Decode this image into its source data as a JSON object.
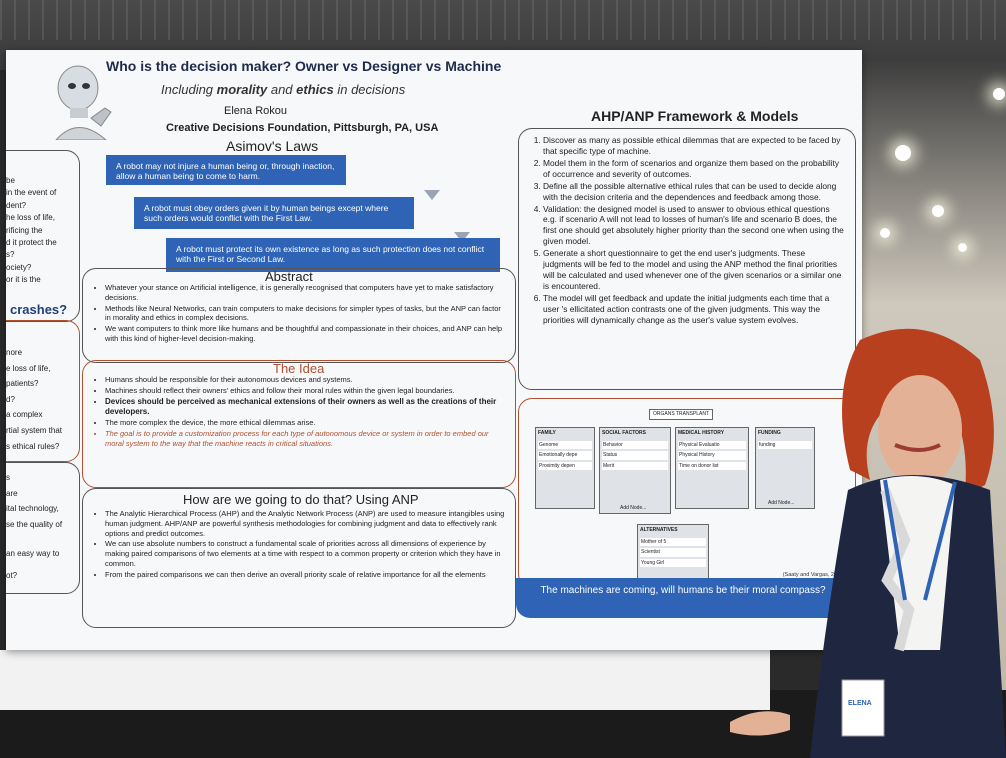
{
  "poster": {
    "title": "Who is the decision maker? Owner vs Designer vs Machine",
    "subtitle_prefix": "Including ",
    "subtitle_morality": "morality",
    "subtitle_and": " and ",
    "subtitle_ethics": "ethics",
    "subtitle_suffix": " in decisions",
    "author": "Elena Rokou",
    "org": "Creative Decisions Foundation, Pittsburgh, PA, USA",
    "asimov_title": "Asimov's Laws",
    "laws": [
      "A robot may not injure a human being or, through inaction, allow a human being to come to harm.",
      "A robot must obey orders given it by human beings except where such orders would conflict with the First Law.",
      "A robot must protect its own existence as long as such protection does not conflict with the First or Second Law."
    ],
    "abstract_title": "Abstract",
    "abstract": [
      "Whatever your stance on Artificial intelligence, it is generally recognised that computers have yet to make satisfactory decisions.",
      "Methods like Neural Networks, can train computers to make decisions for simpler types of tasks, but the ANP can factor in morality and ethics in complex decisions.",
      "We want computers to think more like humans and be thoughtful and compassionate in their choices, and ANP can help with this kind of higher-level decision-making."
    ],
    "idea_title": "The Idea",
    "idea": [
      "Humans should be responsible for their autonomous devices and systems.",
      "Machines should reflect their owners' ethics and follow their moral rules within the given legal boundaries.",
      "Devices should be perceived as mechanical extensions of their owners as well as the creations of their developers.",
      "The more complex the device, the more ethical dilemmas arise.",
      "The goal is to provide a customization process for each type of autonomous device or system in order to embed our moral system to the way that the machine reacts in critical situations."
    ],
    "how_title": "How are we going to do that? Using ANP",
    "how": [
      "The Analytic Hierarchical Process (AHP) and the Analytic Network Process (ANP) are used to measure intangibles using human judgment. AHP/ANP are powerful synthesis methodologies for combining judgment and data to effectively rank options and predict outcomes.",
      "We can use absolute numbers to construct a fundamental scale of priorities across all dimensions of experience by making paired comparisons of two elements at a time with respect to a common property or criterion which they have in common.",
      "From the paired comparisons we can then derive an overall priority scale of relative importance for all the elements"
    ],
    "left_fragments_1": [
      "be",
      "in the event of",
      "dent?",
      "he loss of life,",
      "rificing the",
      "d it protect the",
      "s?",
      "ociety?",
      "or it is the"
    ],
    "crashes": "crashes?",
    "left_fragments_2": [
      "nore",
      "e loss of life,",
      "patients?",
      "d?",
      "a complex",
      "rtial system that",
      "s ethical rules?"
    ],
    "left_fragments_3": [
      "s",
      "are",
      "ital technology,",
      "se the quality of",
      "an easy way to",
      "ot?"
    ],
    "anp_title": "AHP/ANP Framework & Models",
    "anp_steps": [
      "Discover as many as possible ethical dilemmas that are expected to be faced by that specific type of machine.",
      "Model them in the form of scenarios and organize them based on the probability of occurrence and severity of outcomes.",
      "Define all the possible alternative ethical rules that can be used to decide along with the decision criteria and the dependences and feedback among those.",
      "Validation: the designed model is used to answer to obvious ethical questions e.g. if scenario A will not lead to losses of human's life and scenario B does, the first one should get absolutely higher priority than the second one when using the given model.",
      "Generate a short questionnaire to get the end user's judgments. These judgments will be fed to the model and using the ANP method the final priorities will be calculated and used whenever one of the given scenarios or a similar one is encountered.",
      "The model will get feedback and update the initial judgments each time that a user 's ellicitated action contrasts one of the given judgments. This way the priorities will dynamically change as the user's value system evolves."
    ],
    "diagram": {
      "top": "ORGANS TRANSPLANT",
      "clusters": [
        {
          "name": "FAMILY",
          "items": [
            "Genome",
            "Emotionally depe",
            "Proximity depen"
          ]
        },
        {
          "name": "SOCIAL FACTORS",
          "items": [
            "Behavior",
            "Status",
            "Merit"
          ]
        },
        {
          "name": "MEDICAL HISTORY",
          "items": [
            "Physical Evaluatio",
            "Physical History",
            "Time on donor list"
          ]
        },
        {
          "name": "FUNDING",
          "items": [
            "funding"
          ]
        }
      ],
      "alternatives": {
        "name": "ALTERNATIVES",
        "items": [
          "Mother of 5",
          "Scientist",
          "Young Girl"
        ]
      },
      "add_label": "Add Node...",
      "citation": "(Saaty and Vargas, 2012)"
    },
    "banner": "The machines are coming, will humans be their moral compass?"
  },
  "badge_name": "ELENA"
}
